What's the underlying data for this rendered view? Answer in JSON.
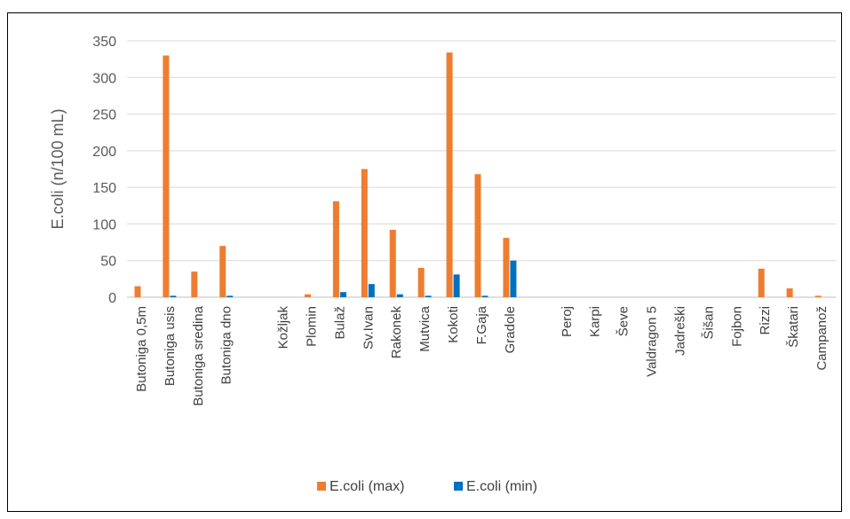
{
  "chart_data": {
    "type": "bar",
    "ylabel": "E.coli (n/100 mL)",
    "ylim": [
      0,
      350
    ],
    "yticks": [
      0,
      50,
      100,
      150,
      200,
      250,
      300,
      350
    ],
    "grid": true,
    "legend_position": "bottom",
    "categories": [
      "Butoniga  0,5m",
      "Butoniga usis",
      "Butoniga sredina",
      "Butoniga dno",
      "",
      "Kožljak",
      "Plomin",
      "Bulaž",
      "Sv.Ivan",
      "Rakonek",
      "Mutvica",
      "Kokoti",
      "F.Gaja",
      "Gradole",
      "",
      "Peroj",
      "Karpi",
      "Ševe",
      "Valdragon 5",
      "Jadreški",
      "Šišan",
      "Fojbon",
      "Rizzi",
      "Škatari",
      "Campanož"
    ],
    "series": [
      {
        "name": "E.coli (max)",
        "color": "#ED7D31",
        "values": [
          15,
          330,
          35,
          70,
          0,
          0,
          4,
          131,
          175,
          92,
          40,
          334,
          168,
          81,
          0,
          0,
          0,
          0,
          0,
          0,
          0,
          0,
          39,
          12,
          2
        ]
      },
      {
        "name": "E.coli (min)",
        "color": "#0070C0",
        "values": [
          0,
          2,
          0,
          2,
          0,
          0,
          0,
          7,
          18,
          4,
          2,
          31,
          2,
          50,
          0,
          0,
          0,
          0,
          0,
          0,
          0,
          0,
          0,
          0,
          0
        ]
      }
    ]
  }
}
